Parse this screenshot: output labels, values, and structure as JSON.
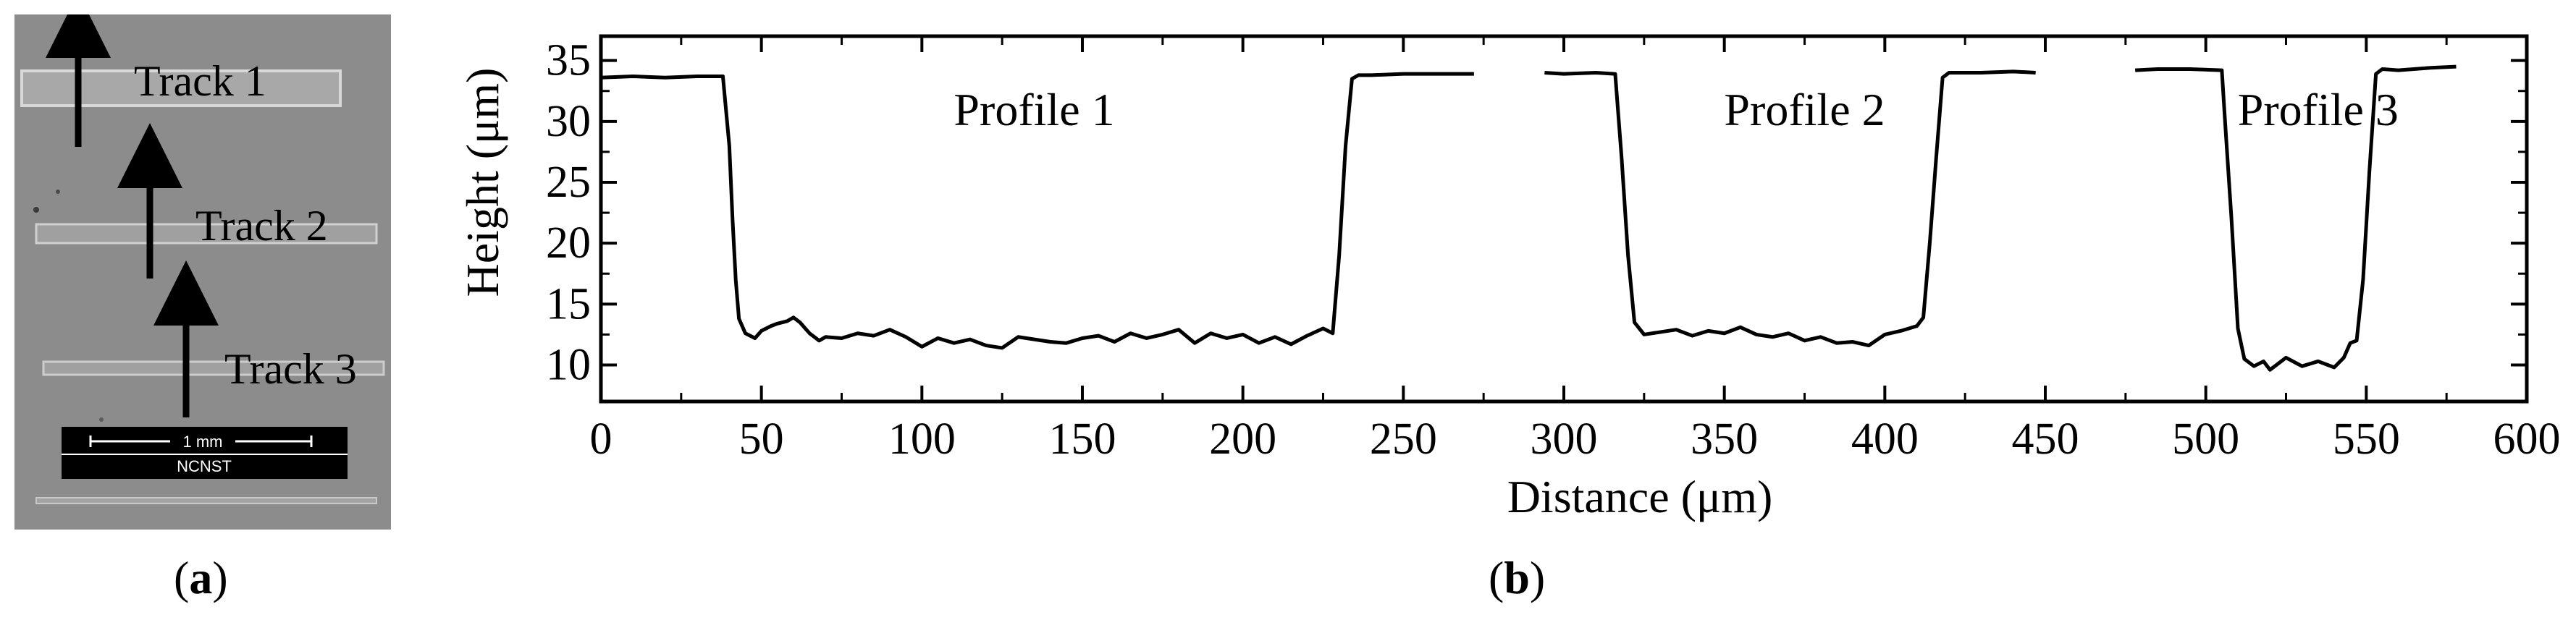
{
  "panel_a": {
    "label_open": "(",
    "label_letter": "a",
    "label_close": ")",
    "tracks": [
      "Track 1",
      "Track 2",
      "Track 3"
    ],
    "scale_bar": {
      "length_text": "1 mm",
      "institution": "NCNST"
    },
    "colors": {
      "background": "#8a8a8a",
      "track": "#c8c8c8",
      "arrow": "#000000"
    }
  },
  "panel_b": {
    "label_open": "(",
    "label_letter": "b",
    "label_close": ")"
  },
  "chart_data": {
    "type": "line",
    "xlabel": "Distance (μm)",
    "ylabel": "Height (μm)",
    "xlim": [
      0,
      600
    ],
    "ylim": [
      7,
      37
    ],
    "x_ticks": [
      0,
      50,
      100,
      150,
      200,
      250,
      300,
      350,
      400,
      450,
      500,
      550,
      600
    ],
    "y_ticks": [
      10,
      15,
      20,
      25,
      30,
      35
    ],
    "grid": false,
    "line_color": "#000000",
    "annotations": [
      {
        "text": "Profile 1",
        "x": 135,
        "y": 31
      },
      {
        "text": "Profile 2",
        "x": 375,
        "y": 31
      },
      {
        "text": "Profile 3",
        "x": 535,
        "y": 31
      }
    ],
    "series": [
      {
        "x": [
          0,
          10,
          20,
          30,
          38,
          40,
          41,
          42,
          43,
          45,
          48,
          50,
          53,
          55,
          58,
          60,
          62,
          65,
          68,
          70,
          75,
          80,
          85,
          90,
          95,
          100,
          105,
          110,
          115,
          120,
          125,
          130,
          135,
          140,
          145,
          150,
          155,
          160,
          165,
          170,
          175,
          180,
          185,
          190,
          195,
          200,
          205,
          210,
          215,
          220,
          225,
          228,
          230,
          232,
          234,
          236,
          240,
          250,
          260,
          272
        ],
        "y": [
          33.6,
          33.7,
          33.6,
          33.7,
          33.7,
          28,
          22,
          17,
          13.8,
          12.6,
          12.2,
          12.8,
          13.2,
          13.4,
          13.6,
          13.9,
          13.5,
          12.6,
          12.0,
          12.3,
          12.2,
          12.6,
          12.4,
          12.9,
          12.3,
          11.5,
          12.2,
          11.8,
          12.1,
          11.6,
          11.4,
          12.3,
          12.1,
          11.9,
          11.8,
          12.2,
          12.4,
          11.9,
          12.6,
          12.2,
          12.5,
          12.9,
          11.8,
          12.6,
          12.2,
          12.5,
          11.8,
          12.3,
          11.7,
          12.4,
          13.0,
          12.6,
          19,
          28,
          33.5,
          33.8,
          33.8,
          33.9,
          33.9,
          33.9
        ]
      },
      {
        "x": [
          294,
          300,
          310,
          316,
          318,
          320,
          322,
          325,
          330,
          335,
          340,
          345,
          350,
          355,
          360,
          365,
          370,
          375,
          380,
          385,
          390,
          395,
          400,
          405,
          410,
          412,
          414,
          416,
          418,
          420,
          430,
          440,
          447
        ],
        "y": [
          34.0,
          33.9,
          34.0,
          33.9,
          27,
          19,
          13.5,
          12.5,
          12.7,
          12.9,
          12.4,
          12.8,
          12.6,
          13.1,
          12.5,
          12.3,
          12.6,
          12.0,
          12.3,
          11.8,
          11.9,
          11.6,
          12.5,
          12.8,
          13.2,
          13.9,
          20,
          27,
          33.6,
          34.0,
          34.0,
          34.1,
          34.0
        ]
      },
      {
        "x": [
          478,
          485,
          495,
          505,
          506,
          508,
          510,
          512,
          515,
          518,
          520,
          525,
          530,
          535,
          540,
          543,
          545,
          547,
          549,
          551,
          553,
          555,
          560,
          570,
          578
        ],
        "y": [
          34.2,
          34.3,
          34.3,
          34.2,
          30,
          22,
          13,
          10.5,
          9.9,
          10.3,
          9.6,
          10.6,
          9.9,
          10.3,
          9.8,
          10.6,
          11.8,
          12.0,
          17,
          26,
          33.9,
          34.3,
          34.2,
          34.4,
          34.5
        ]
      }
    ]
  }
}
